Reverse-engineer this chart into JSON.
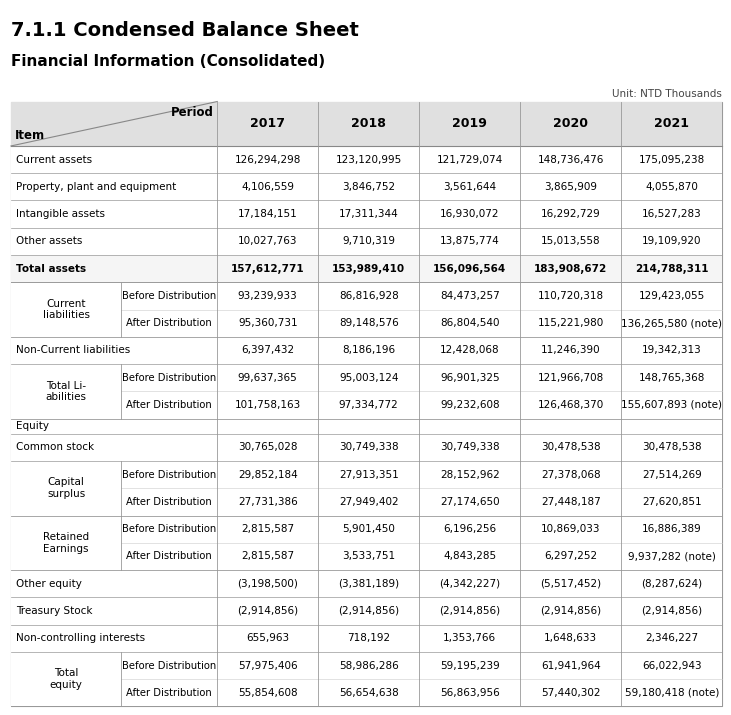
{
  "title": "7.1.1 Condensed Balance Sheet",
  "subtitle": "Financial Information (Consolidated)",
  "unit_label": "Unit: NTD Thousands",
  "years": [
    "2017",
    "2018",
    "2019",
    "2020",
    "2021"
  ],
  "rows": [
    {
      "item": "Current assets",
      "sub": "",
      "vals": [
        "126,294,298",
        "123,120,995",
        "121,729,074",
        "148,736,476",
        "175,095,238"
      ],
      "bold": false,
      "span": 1
    },
    {
      "item": "Property, plant and equipment",
      "sub": "",
      "vals": [
        "4,106,559",
        "3,846,752",
        "3,561,644",
        "3,865,909",
        "4,055,870"
      ],
      "bold": false,
      "span": 1
    },
    {
      "item": "Intangible assets",
      "sub": "",
      "vals": [
        "17,184,151",
        "17,311,344",
        "16,930,072",
        "16,292,729",
        "16,527,283"
      ],
      "bold": false,
      "span": 1
    },
    {
      "item": "Other assets",
      "sub": "",
      "vals": [
        "10,027,763",
        "9,710,319",
        "13,875,774",
        "15,013,558",
        "19,109,920"
      ],
      "bold": false,
      "span": 1
    },
    {
      "item": "Total assets",
      "sub": "",
      "vals": [
        "157,612,771",
        "153,989,410",
        "156,096,564",
        "183,908,672",
        "214,788,311"
      ],
      "bold": true,
      "span": 1
    },
    {
      "item": "Current\nliabilities",
      "sub": "Before Distribution",
      "vals": [
        "93,239,933",
        "86,816,928",
        "84,473,257",
        "110,720,318",
        "129,423,055"
      ],
      "bold": false,
      "span": 2
    },
    {
      "item": "",
      "sub": "After Distribution",
      "vals": [
        "95,360,731",
        "89,148,576",
        "86,804,540",
        "115,221,980",
        "136,265,580 (note)"
      ],
      "bold": false,
      "span": 0
    },
    {
      "item": "Non-Current liabilities",
      "sub": "",
      "vals": [
        "6,397,432",
        "8,186,196",
        "12,428,068",
        "11,246,390",
        "19,342,313"
      ],
      "bold": false,
      "span": 1
    },
    {
      "item": "Total Li-\nabilities",
      "sub": "Before Distribution",
      "vals": [
        "99,637,365",
        "95,003,124",
        "96,901,325",
        "121,966,708",
        "148,765,368"
      ],
      "bold": false,
      "span": 2
    },
    {
      "item": "",
      "sub": "After Distribution",
      "vals": [
        "101,758,163",
        "97,334,772",
        "99,232,608",
        "126,468,370",
        "155,607,893 (note)"
      ],
      "bold": false,
      "span": 0
    },
    {
      "item": "Equity",
      "sub": "",
      "vals": [
        "",
        "",
        "",
        "",
        ""
      ],
      "bold": false,
      "span": 1
    },
    {
      "item": "Common stock",
      "sub": "",
      "vals": [
        "30,765,028",
        "30,749,338",
        "30,749,338",
        "30,478,538",
        "30,478,538"
      ],
      "bold": false,
      "span": 1
    },
    {
      "item": "Capital\nsurplus",
      "sub": "Before Distribution",
      "vals": [
        "29,852,184",
        "27,913,351",
        "28,152,962",
        "27,378,068",
        "27,514,269"
      ],
      "bold": false,
      "span": 2
    },
    {
      "item": "",
      "sub": "After Distribution",
      "vals": [
        "27,731,386",
        "27,949,402",
        "27,174,650",
        "27,448,187",
        "27,620,851"
      ],
      "bold": false,
      "span": 0
    },
    {
      "item": "Retained\nEarnings",
      "sub": "Before Distribution",
      "vals": [
        "2,815,587",
        "5,901,450",
        "6,196,256",
        "10,869,033",
        "16,886,389"
      ],
      "bold": false,
      "span": 2
    },
    {
      "item": "",
      "sub": "After Distribution",
      "vals": [
        "2,815,587",
        "3,533,751",
        "4,843,285",
        "6,297,252",
        "9,937,282 (note)"
      ],
      "bold": false,
      "span": 0
    },
    {
      "item": "Other equity",
      "sub": "",
      "vals": [
        "(3,198,500)",
        "(3,381,189)",
        "(4,342,227)",
        "(5,517,452)",
        "(8,287,624)"
      ],
      "bold": false,
      "span": 1
    },
    {
      "item": "Treasury Stock",
      "sub": "",
      "vals": [
        "(2,914,856)",
        "(2,914,856)",
        "(2,914,856)",
        "(2,914,856)",
        "(2,914,856)"
      ],
      "bold": false,
      "span": 1
    },
    {
      "item": "Non-controlling interests",
      "sub": "",
      "vals": [
        "655,963",
        "718,192",
        "1,353,766",
        "1,648,633",
        "2,346,227"
      ],
      "bold": false,
      "span": 1
    },
    {
      "item": "Total\nequity",
      "sub": "Before Distribution",
      "vals": [
        "57,975,406",
        "58,986,286",
        "59,195,239",
        "61,941,964",
        "66,022,943"
      ],
      "bold": false,
      "span": 2
    },
    {
      "item": "",
      "sub": "After Distribution",
      "vals": [
        "55,854,608",
        "56,654,638",
        "56,863,956",
        "57,440,302",
        "59,180,418 (note)"
      ],
      "bold": false,
      "span": 0
    }
  ],
  "header_bg": "#e0e0e0",
  "border_color": "#999999",
  "bold_bg": "#f5f5f5",
  "normal_bg": "#ffffff"
}
